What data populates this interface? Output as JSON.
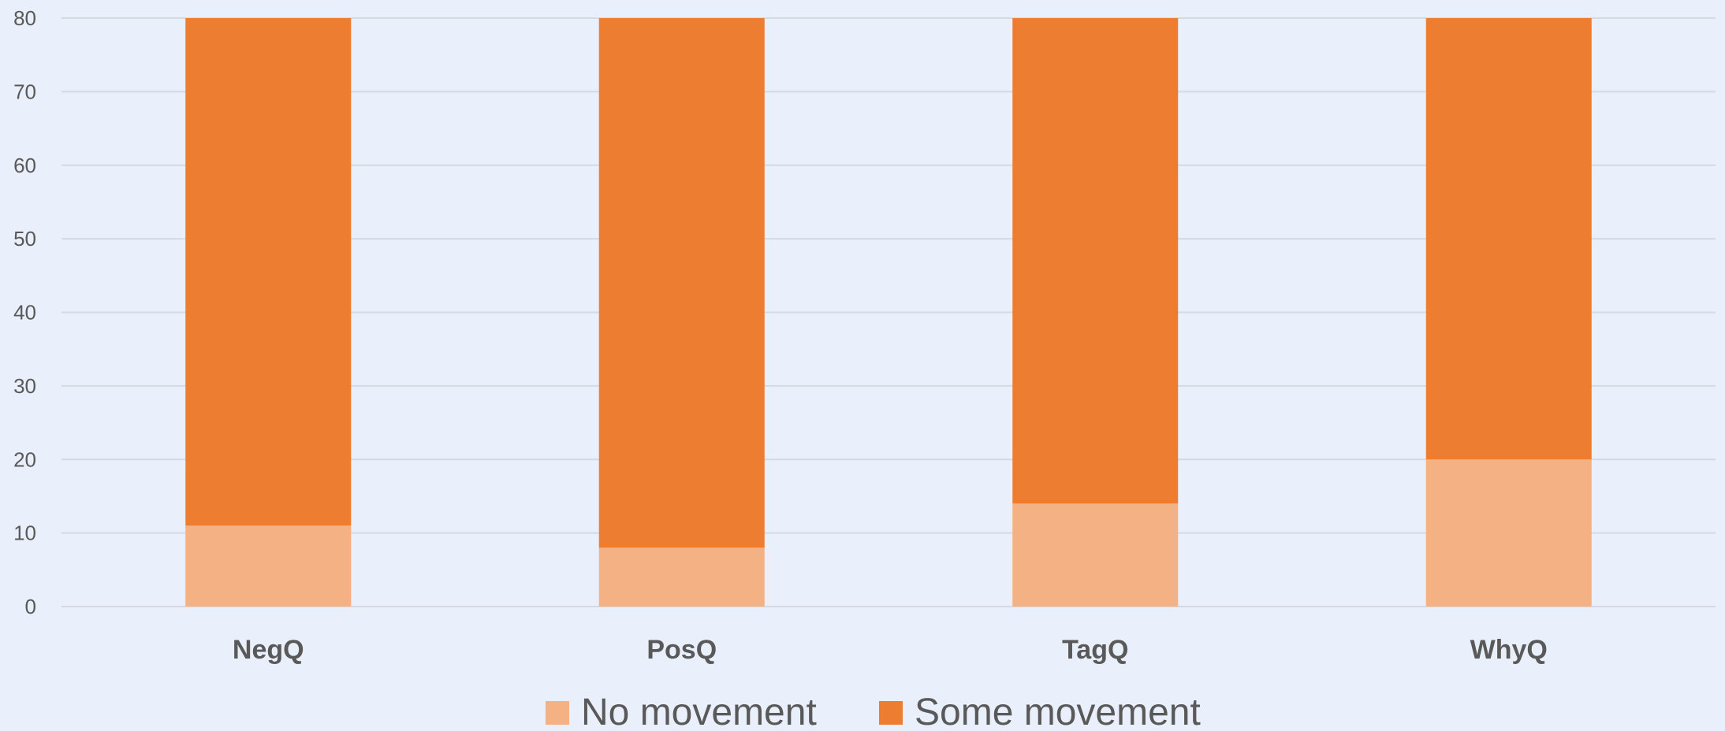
{
  "chart_data": {
    "type": "bar",
    "stacked": true,
    "categories": [
      "NegQ",
      "PosQ",
      "TagQ",
      "WhyQ"
    ],
    "series": [
      {
        "name": "No movement",
        "values": [
          11,
          8,
          14,
          20
        ],
        "color": "#F4B183"
      },
      {
        "name": "Some movement",
        "values": [
          69,
          72,
          66,
          60
        ],
        "color": "#ED7D31"
      }
    ],
    "ylim": [
      0,
      80
    ],
    "yticks": [
      0,
      10,
      20,
      30,
      40,
      50,
      60,
      70,
      80
    ],
    "grid": true,
    "legend_position": "bottom",
    "background": "#E9EFFB",
    "text_color": "#595959"
  }
}
